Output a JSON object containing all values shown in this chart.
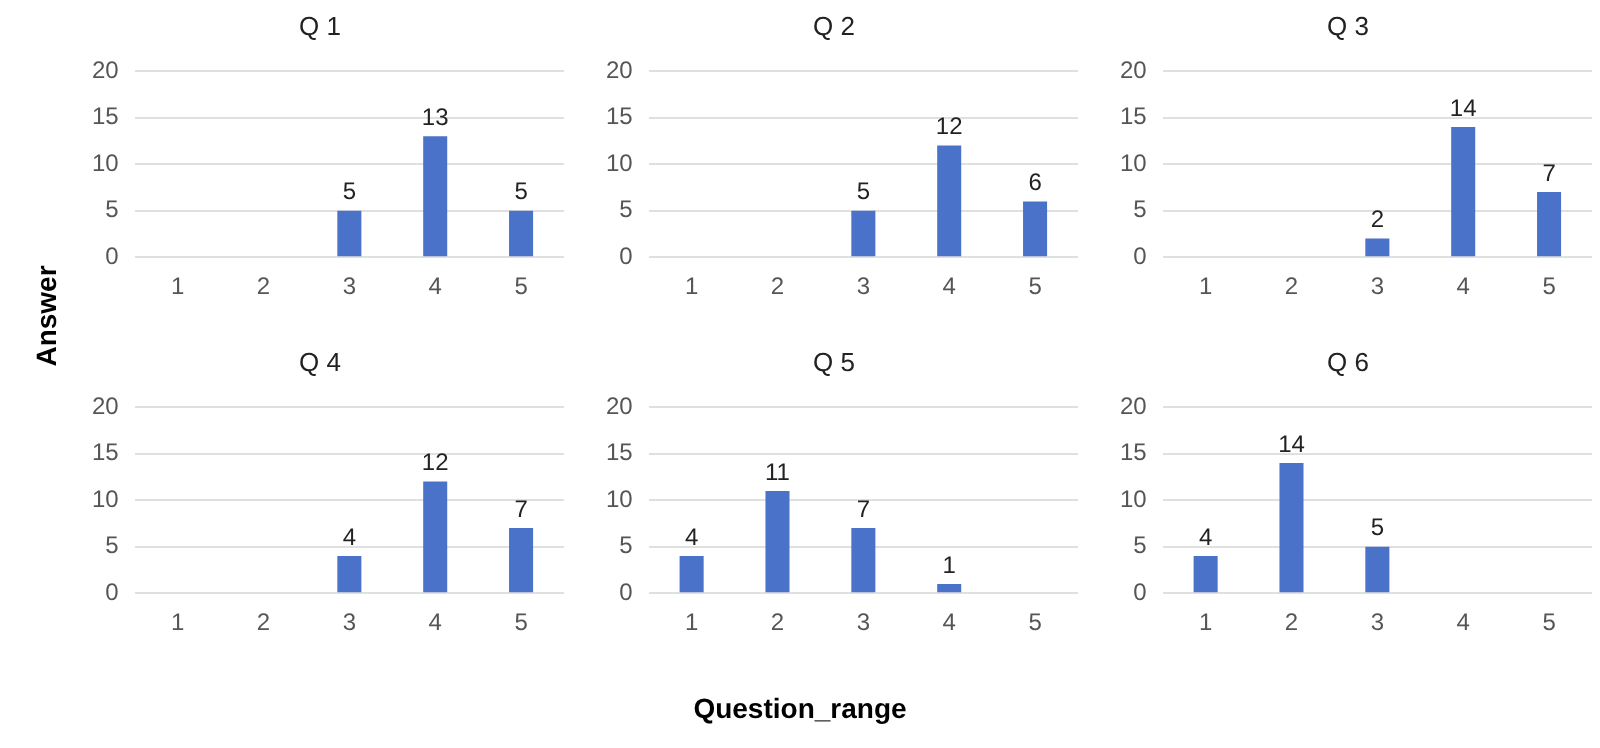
{
  "chart_data": [
    {
      "type": "bar",
      "title": "Q 1",
      "ylabel": "Answer",
      "categories": [
        "1",
        "2",
        "3",
        "4",
        "5"
      ],
      "values": [
        null,
        null,
        5,
        13,
        5
      ],
      "color": "#4a72c8",
      "ylim": [
        0,
        20
      ],
      "yticks": [
        0,
        5,
        10,
        15,
        20
      ],
      "grid": "y",
      "data_labels": true
    },
    {
      "type": "bar",
      "title": "Q 2",
      "categories": [
        "1",
        "2",
        "3",
        "4",
        "5"
      ],
      "values": [
        null,
        null,
        5,
        12,
        6
      ],
      "color": "#4a72c8",
      "ylim": [
        0,
        20
      ],
      "yticks": [
        0,
        5,
        10,
        15,
        20
      ],
      "grid": "y",
      "data_labels": true
    },
    {
      "type": "bar",
      "title": "Q 3",
      "categories": [
        "1",
        "2",
        "3",
        "4",
        "5"
      ],
      "values": [
        null,
        null,
        2,
        14,
        7
      ],
      "color": "#4a72c8",
      "ylim": [
        0,
        20
      ],
      "yticks": [
        0,
        5,
        10,
        15,
        20
      ],
      "grid": "y",
      "data_labels": true
    },
    {
      "type": "bar",
      "title": "Q 4",
      "categories": [
        "1",
        "2",
        "3",
        "4",
        "5"
      ],
      "values": [
        null,
        null,
        4,
        12,
        7
      ],
      "color": "#4a72c8",
      "ylim": [
        0,
        20
      ],
      "yticks": [
        0,
        5,
        10,
        15,
        20
      ],
      "grid": "y",
      "data_labels": true
    },
    {
      "type": "bar",
      "title": "Q 5",
      "xlabel": "Question_range",
      "categories": [
        "1",
        "2",
        "3",
        "4",
        "5"
      ],
      "values": [
        4,
        11,
        7,
        1,
        null
      ],
      "color": "#4a72c8",
      "ylim": [
        0,
        20
      ],
      "yticks": [
        0,
        5,
        10,
        15,
        20
      ],
      "grid": "y",
      "data_labels": true
    },
    {
      "type": "bar",
      "title": "Q 6",
      "categories": [
        "1",
        "2",
        "3",
        "4",
        "5"
      ],
      "values": [
        4,
        14,
        5,
        null,
        null
      ],
      "color": "#4a72c8",
      "ylim": [
        0,
        20
      ],
      "yticks": [
        0,
        5,
        10,
        15,
        20
      ],
      "grid": "y",
      "data_labels": true
    }
  ]
}
